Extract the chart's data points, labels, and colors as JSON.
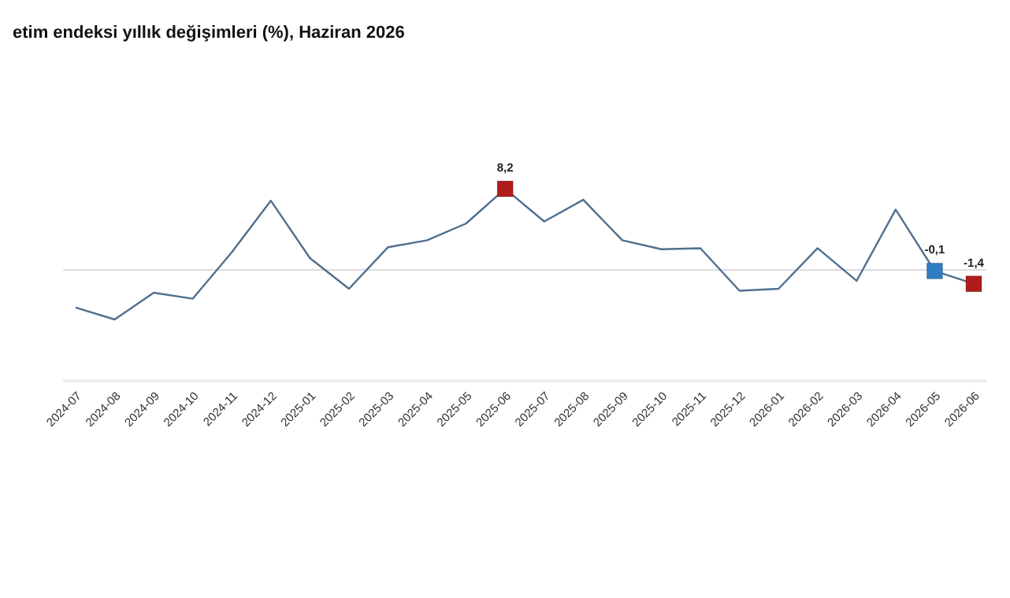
{
  "chart_data": {
    "type": "line",
    "title": "etim endeksi yıllık değişimleri (%), Haziran 2026",
    "categories": [
      "2024-07",
      "2024-08",
      "2024-09",
      "2024-10",
      "2024-11",
      "2024-12",
      "2025-01",
      "2025-02",
      "2025-03",
      "2025-04",
      "2025-05",
      "2025-06",
      "2025-07",
      "2025-08",
      "2025-09",
      "2025-10",
      "2025-11",
      "2025-12",
      "2026-01",
      "2026-02",
      "2026-03",
      "2026-04",
      "2026-05",
      "2026-06"
    ],
    "series": [
      {
        "color": "#4f6f8f",
        "marker": "none",
        "values": [
          -3.8,
          -5.0,
          -2.3,
          -2.9,
          1.8,
          7.0,
          1.2,
          -1.9,
          2.3,
          3.0,
          4.7,
          8.2,
          4.9,
          7.1,
          3.0,
          2.1,
          2.2,
          -2.1,
          -1.9,
          2.2,
          -1.1,
          6.1,
          -0.1,
          -1.4
        ]
      },
      {
        "type": "scatter",
        "marker": "square",
        "values": [
          null,
          null,
          null,
          null,
          null,
          null,
          null,
          null,
          null,
          null,
          null,
          8.2,
          null,
          null,
          null,
          null,
          null,
          null,
          null,
          null,
          null,
          null,
          -0.1,
          -1.4
        ],
        "colors": [
          null,
          null,
          null,
          null,
          null,
          null,
          null,
          null,
          null,
          null,
          null,
          "#b11b1b",
          null,
          null,
          null,
          null,
          null,
          null,
          null,
          null,
          null,
          null,
          "#2f7dc0",
          "#b11b1b"
        ],
        "value_labels": [
          null,
          null,
          null,
          null,
          null,
          null,
          null,
          null,
          null,
          null,
          null,
          "8,2",
          null,
          null,
          null,
          null,
          null,
          null,
          null,
          null,
          null,
          null,
          "-0,1",
          "-1,4"
        ]
      }
    ],
    "tick_labels": "x",
    "grid": false,
    "ref_lines": [
      {
        "axis": "y",
        "value": 0,
        "color": "#dddddd"
      }
    ]
  }
}
